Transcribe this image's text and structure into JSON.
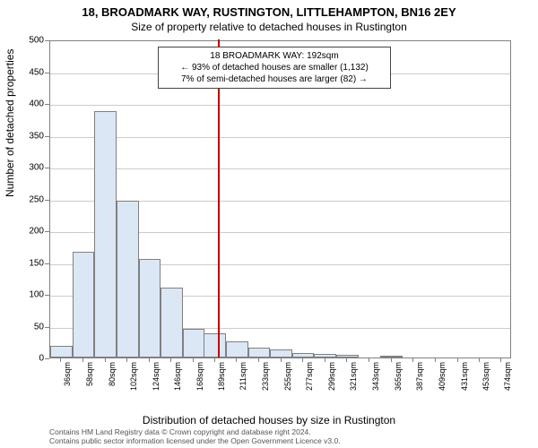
{
  "header": {
    "address": "18, BROADMARK WAY, RUSTINGTON, LITTLEHAMPTON, BN16 2EY",
    "subtitle": "Size of property relative to detached houses in Rustington"
  },
  "chart": {
    "type": "histogram",
    "ylabel": "Number of detached properties",
    "xlabel": "Distribution of detached houses by size in Rustington",
    "background_color": "#ffffff",
    "grid_color": "#cccccc",
    "axis_color": "#808080",
    "ylim": [
      0,
      500
    ],
    "yticks": [
      0,
      50,
      100,
      150,
      200,
      250,
      300,
      350,
      400,
      450,
      500
    ],
    "xlim": [
      25,
      485
    ],
    "xticks": [
      "36sqm",
      "58sqm",
      "80sqm",
      "102sqm",
      "124sqm",
      "146sqm",
      "168sqm",
      "189sqm",
      "211sqm",
      "233sqm",
      "255sqm",
      "277sqm",
      "299sqm",
      "321sqm",
      "343sqm",
      "365sqm",
      "387sqm",
      "409sqm",
      "431sqm",
      "453sqm",
      "474sqm"
    ],
    "xtick_values": [
      36,
      58,
      80,
      102,
      124,
      146,
      168,
      189,
      211,
      233,
      255,
      277,
      299,
      321,
      343,
      365,
      387,
      409,
      431,
      453,
      474
    ],
    "bar_fill": "#dbe7f5",
    "bar_border": "#808080",
    "bar_width_sqm": 22,
    "bars": [
      {
        "x": 36,
        "y": 18
      },
      {
        "x": 58,
        "y": 166
      },
      {
        "x": 80,
        "y": 388
      },
      {
        "x": 102,
        "y": 247
      },
      {
        "x": 124,
        "y": 155
      },
      {
        "x": 146,
        "y": 110
      },
      {
        "x": 168,
        "y": 45
      },
      {
        "x": 189,
        "y": 38
      },
      {
        "x": 211,
        "y": 25
      },
      {
        "x": 233,
        "y": 16
      },
      {
        "x": 255,
        "y": 13
      },
      {
        "x": 277,
        "y": 7
      },
      {
        "x": 299,
        "y": 6
      },
      {
        "x": 321,
        "y": 4
      },
      {
        "x": 343,
        "y": 0
      },
      {
        "x": 365,
        "y": 3
      },
      {
        "x": 387,
        "y": 0
      },
      {
        "x": 409,
        "y": 0
      },
      {
        "x": 431,
        "y": 0
      },
      {
        "x": 453,
        "y": 0
      },
      {
        "x": 474,
        "y": 0
      }
    ],
    "highlight": {
      "x": 192,
      "color": "#c00000",
      "line_width": 2
    },
    "annotation": {
      "line1": "18 BROADMARK WAY: 192sqm",
      "line2": "← 93% of detached houses are smaller (1,132)",
      "line3": "7% of semi-detached houses are larger (82) →",
      "border_color": "#444444",
      "fontsize": 10
    }
  },
  "footer": {
    "line1": "Contains HM Land Registry data © Crown copyright and database right 2024.",
    "line2": "Contains public sector information licensed under the Open Government Licence v3.0."
  }
}
